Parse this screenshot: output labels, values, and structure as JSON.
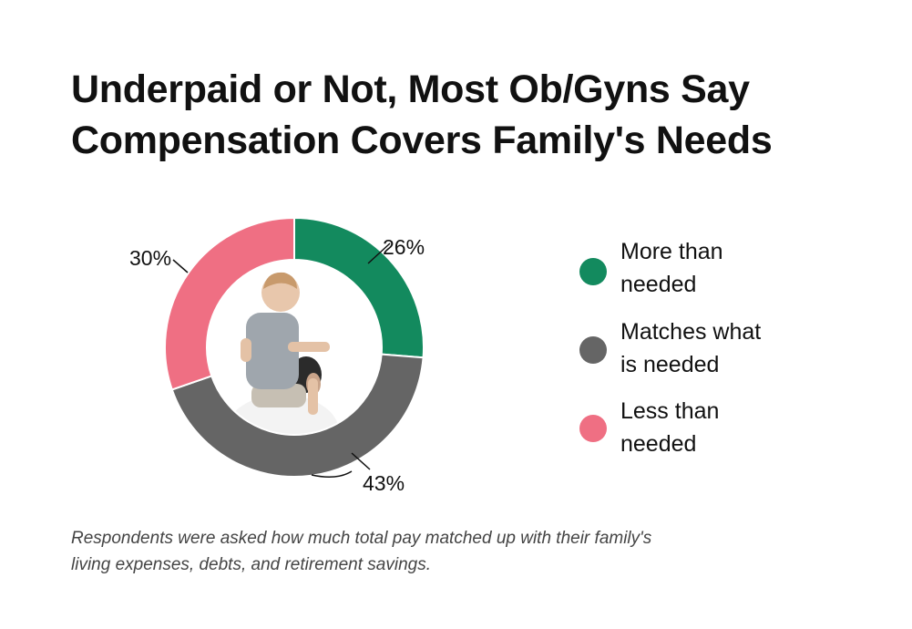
{
  "title_lines": [
    "Underpaid or Not, Most Ob/Gyns Say",
    "Compensation Covers Family's Needs"
  ],
  "chart_data": {
    "type": "pie",
    "variant": "donut",
    "categories": [
      "More than needed",
      "Matches what is needed",
      "Less than needed"
    ],
    "values": [
      26,
      43,
      30
    ],
    "value_labels": [
      "26%",
      "43%",
      "30%"
    ],
    "colors": [
      "#138a5e",
      "#656565",
      "#ef6f83"
    ],
    "center_image": "photo of a toddler riding on an adult's shoulders",
    "legend_position": "right"
  },
  "legend": [
    {
      "lines": [
        "More than",
        "needed"
      ],
      "color": "#138a5e"
    },
    {
      "lines": [
        "Matches what",
        "is needed"
      ],
      "color": "#656565"
    },
    {
      "lines": [
        "Less than",
        "needed"
      ],
      "color": "#ef6f83"
    }
  ],
  "caption_lines": [
    "Respondents were asked how much total pay matched up with their family's",
    "living expenses, debts, and retirement savings."
  ]
}
